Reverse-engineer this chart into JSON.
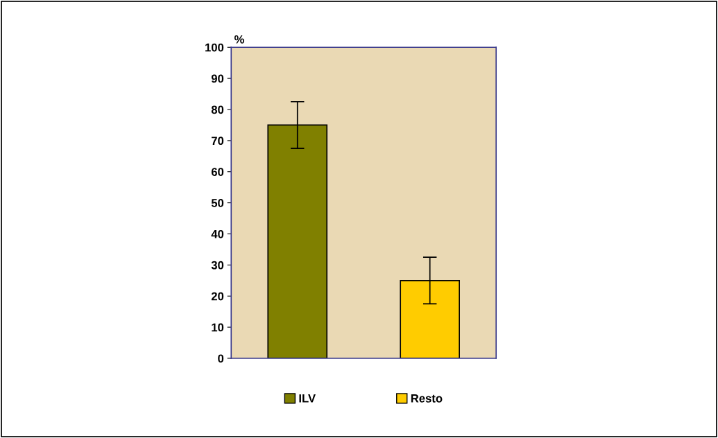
{
  "chart_data": {
    "type": "bar",
    "ylabel": "%",
    "categories": [
      null,
      null
    ],
    "series": [
      {
        "name": "ILV",
        "color": "#808000",
        "values": [
          75,
          null
        ],
        "errors": [
          7.5,
          null
        ]
      },
      {
        "name": "Resto",
        "color": "#ffcc00",
        "values": [
          null,
          25
        ],
        "errors": [
          null,
          7.5
        ]
      }
    ],
    "ylim": [
      0,
      100
    ],
    "yticks": [
      0,
      10,
      20,
      30,
      40,
      50,
      60,
      70,
      80,
      90,
      100
    ],
    "grid": false,
    "legend": "bottom"
  }
}
